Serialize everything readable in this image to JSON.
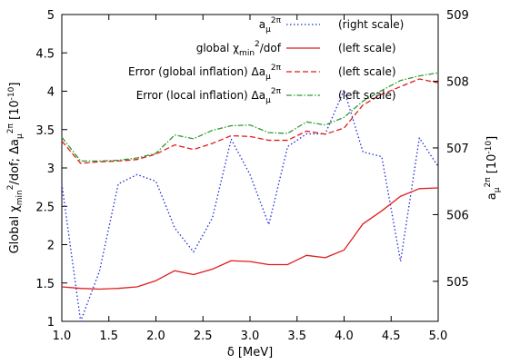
{
  "chart_data": {
    "type": "line",
    "xlabel": "δ [MeV]",
    "ylabel_left": "Global χ²min/dof; Δa2πμ [10⁻¹⁰]",
    "ylabel_right": "a2πμ [10⁻¹⁰]",
    "xlim": [
      1.0,
      5.0
    ],
    "ylim_left": [
      1,
      5
    ],
    "ylim_right": [
      504.4,
      509
    ],
    "x_ticks": [
      "1.0",
      "1.5",
      "2.0",
      "2.5",
      "3.0",
      "3.5",
      "4.0",
      "4.5",
      "5.0"
    ],
    "y_ticks_left": [
      "1",
      "1.5",
      "2",
      "2.5",
      "3",
      "3.5",
      "4",
      "4.5",
      "5"
    ],
    "y_ticks_right": [
      "505",
      "506",
      "507",
      "508",
      "509"
    ],
    "grid": false,
    "legend_position": "top-right",
    "x": [
      1.0,
      1.2,
      1.4,
      1.6,
      1.8,
      2.0,
      2.2,
      2.4,
      2.6,
      2.8,
      3.0,
      3.2,
      3.4,
      3.6,
      3.8,
      4.0,
      4.2,
      4.4,
      4.6,
      4.8,
      5.0
    ],
    "series": [
      {
        "key": "a2pi",
        "axis": "right",
        "legend_note": "(right scale)",
        "color": "#1f2bd6",
        "dash": "dotted",
        "values": [
          506.46,
          504.4,
          505.15,
          506.46,
          506.6,
          506.5,
          505.8,
          505.44,
          505.95,
          507.13,
          506.6,
          505.85,
          507.02,
          507.21,
          507.21,
          507.87,
          506.94,
          506.87,
          505.3,
          507.15,
          506.72
        ]
      },
      {
        "key": "chi2",
        "axis": "left",
        "legend_note": "(left scale)",
        "color": "#e01b1b",
        "dash": "solid",
        "values": [
          1.45,
          1.43,
          1.42,
          1.43,
          1.45,
          1.53,
          1.66,
          1.61,
          1.68,
          1.79,
          1.78,
          1.74,
          1.74,
          1.86,
          1.83,
          1.93,
          2.27,
          2.44,
          2.63,
          2.73,
          2.74
        ]
      },
      {
        "key": "err_global",
        "axis": "left",
        "legend_note": "(left scale)",
        "color": "#e01b1b",
        "dash": "dashed",
        "values": [
          3.35,
          3.06,
          3.08,
          3.09,
          3.11,
          3.18,
          3.3,
          3.24,
          3.32,
          3.42,
          3.41,
          3.36,
          3.36,
          3.48,
          3.44,
          3.52,
          3.82,
          3.96,
          4.06,
          4.16,
          4.11
        ]
      },
      {
        "key": "err_local",
        "axis": "left",
        "legend_note": "(left scale)",
        "color": "#2e9a2e",
        "dash": "dashdot",
        "values": [
          3.4,
          3.09,
          3.09,
          3.1,
          3.13,
          3.19,
          3.43,
          3.38,
          3.49,
          3.55,
          3.56,
          3.46,
          3.45,
          3.6,
          3.56,
          3.66,
          3.87,
          4.01,
          4.14,
          4.2,
          4.24
        ]
      }
    ]
  }
}
